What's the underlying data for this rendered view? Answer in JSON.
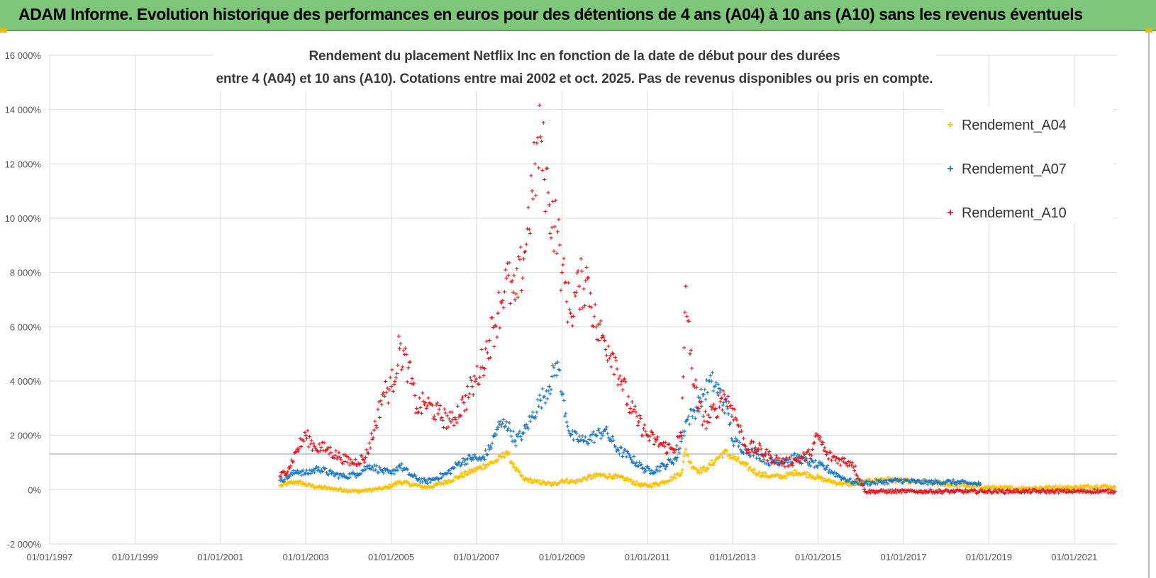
{
  "banner": {
    "title": "ADAM Informe. Evolution historique des performances en euros pour des détentions de 4 ans (A04) à 10 ans (A10) sans les revenus éventuels"
  },
  "colors": {
    "banner": "#7dc67a",
    "A04": "#ffc000",
    "A07": "#1f78c1",
    "A10": "#e8141c",
    "grid": "#d9d9d9"
  },
  "chart_data": {
    "type": "scatter",
    "title_line1": "Rendement du placement Netflix Inc en fonction de la date de début pour des durées",
    "title_line2": "entre 4 (A04) et 10 ans (A10). Cotations entre mai 2002 et oct. 2025. Pas de revenus disponibles ou pris en compte.",
    "xlabel": "",
    "ylabel": "",
    "x_ticks": [
      "01/01/1997",
      "01/01/1999",
      "01/01/2001",
      "01/01/2003",
      "01/01/2005",
      "01/01/2007",
      "01/01/2009",
      "01/01/2011",
      "01/01/2013",
      "01/01/2015",
      "01/01/2017",
      "01/01/2019",
      "01/01/2021"
    ],
    "xlim": [
      1997.0,
      2022.0
    ],
    "y_ticks": [
      "-2 000%",
      "0%",
      "2 000%",
      "4 000%",
      "6 000%",
      "8 000%",
      "10 000%",
      "12 000%",
      "14 000%",
      "16 000%"
    ],
    "ylim": [
      -2000,
      16000
    ],
    "grid": true,
    "legend_position": "right",
    "series": [
      {
        "name": "Rendement_A04",
        "x": [
          2002.4,
          2002.6,
          2002.8,
          2003.0,
          2003.3,
          2003.6,
          2003.9,
          2004.2,
          2004.5,
          2004.8,
          2005.0,
          2005.2,
          2005.5,
          2005.8,
          2006.0,
          2006.3,
          2006.6,
          2006.9,
          2007.2,
          2007.5,
          2007.7,
          2007.9,
          2008.1,
          2008.4,
          2008.6,
          2008.8,
          2009.0,
          2009.3,
          2009.6,
          2009.9,
          2010.2,
          2010.5,
          2010.8,
          2011.0,
          2011.3,
          2011.6,
          2011.8,
          2011.9,
          2012.0,
          2012.2,
          2012.4,
          2012.6,
          2012.8,
          2013.0,
          2013.3,
          2013.6,
          2013.9,
          2014.2,
          2014.5,
          2014.8,
          2015.0,
          2015.2,
          2015.5,
          2015.8,
          2016.1,
          2016.5,
          2016.9,
          2017.3,
          2017.7,
          2018.1,
          2018.5,
          2018.9,
          2019.3,
          2019.7,
          2020.1,
          2020.5,
          2020.9,
          2021.3,
          2021.7,
          2021.95
        ],
        "y": [
          150,
          250,
          300,
          200,
          100,
          50,
          0,
          -50,
          0,
          50,
          150,
          300,
          200,
          100,
          150,
          300,
          500,
          700,
          900,
          1100,
          1400,
          800,
          400,
          300,
          250,
          200,
          350,
          300,
          450,
          550,
          500,
          400,
          200,
          150,
          250,
          450,
          650,
          1500,
          1000,
          700,
          800,
          1100,
          1400,
          1200,
          900,
          600,
          500,
          500,
          650,
          550,
          450,
          350,
          250,
          200,
          300,
          400,
          350,
          300,
          250,
          200,
          150,
          100,
          80,
          60,
          80,
          100,
          90,
          120,
          140,
          100
        ]
      },
      {
        "name": "Rendement_A07",
        "x": [
          2002.4,
          2002.6,
          2002.8,
          2003.0,
          2003.3,
          2003.6,
          2003.9,
          2004.2,
          2004.5,
          2004.8,
          2005.0,
          2005.2,
          2005.5,
          2005.8,
          2006.0,
          2006.3,
          2006.6,
          2006.9,
          2007.1,
          2007.3,
          2007.5,
          2007.7,
          2007.9,
          2008.1,
          2008.3,
          2008.5,
          2008.7,
          2008.9,
          2009.0,
          2009.2,
          2009.5,
          2009.8,
          2010.0,
          2010.3,
          2010.6,
          2010.9,
          2011.1,
          2011.4,
          2011.7,
          2011.9,
          2012.1,
          2012.3,
          2012.5,
          2012.7,
          2012.9,
          2013.0,
          2013.3,
          2013.6,
          2013.9,
          2014.2,
          2014.5,
          2014.8,
          2015.0,
          2015.2,
          2015.5,
          2015.8,
          2016.1,
          2016.5,
          2016.9,
          2017.3,
          2017.7,
          2018.1,
          2018.5,
          2018.8
        ],
        "y": [
          350,
          500,
          700,
          600,
          800,
          600,
          500,
          600,
          900,
          700,
          600,
          900,
          500,
          300,
          400,
          600,
          1000,
          1200,
          1100,
          1500,
          2300,
          2500,
          1800,
          2100,
          2700,
          3300,
          3800,
          4700,
          3500,
          2000,
          1800,
          2000,
          2200,
          1500,
          1200,
          800,
          700,
          900,
          1200,
          2500,
          2900,
          3500,
          4000,
          3600,
          2800,
          1800,
          1500,
          1300,
          1000,
          1100,
          1200,
          1000,
          900,
          800,
          500,
          300,
          250,
          300,
          350,
          300,
          280,
          300,
          250,
          220
        ]
      },
      {
        "name": "Rendement_A10",
        "x": [
          2002.4,
          2002.6,
          2002.8,
          2003.0,
          2003.2,
          2003.5,
          2003.8,
          2004.1,
          2004.4,
          2004.6,
          2004.8,
          2005.0,
          2005.2,
          2005.4,
          2005.6,
          2005.8,
          2006.1,
          2006.4,
          2006.7,
          2006.9,
          2007.1,
          2007.3,
          2007.5,
          2007.7,
          2007.9,
          2008.1,
          2008.3,
          2008.5,
          2008.7,
          2008.9,
          2009.0,
          2009.2,
          2009.4,
          2009.6,
          2009.8,
          2010.0,
          2010.2,
          2010.4,
          2010.6,
          2010.8,
          2011.0,
          2011.2,
          2011.4,
          2011.6,
          2011.8,
          2011.9,
          2012.0,
          2012.2,
          2012.4,
          2012.6,
          2012.8,
          2013.0,
          2013.3,
          2013.6,
          2013.9,
          2014.2,
          2014.5,
          2014.8,
          2015.0,
          2015.2,
          2015.5,
          2015.8,
          2016.1,
          2016.5,
          2016.9,
          2017.3,
          2017.7,
          2018.1,
          2018.5,
          2018.9,
          2019.3,
          2019.7,
          2020.1,
          2020.5,
          2020.9,
          2021.3,
          2021.7,
          2021.95
        ],
        "y": [
          500,
          800,
          1500,
          2000,
          1600,
          1500,
          1200,
          1000,
          1200,
          2200,
          3500,
          3800,
          5200,
          4500,
          3000,
          3200,
          2800,
          2500,
          3200,
          3800,
          4500,
          5500,
          6500,
          7800,
          7000,
          8500,
          11000,
          13000,
          10500,
          9500,
          8000,
          6500,
          7500,
          7800,
          6000,
          5500,
          5000,
          4000,
          3000,
          2500,
          2000,
          1800,
          1600,
          1500,
          2000,
          7500,
          5000,
          3000,
          2500,
          3000,
          3500,
          3000,
          1600,
          1500,
          1200,
          1000,
          1100,
          1300,
          2000,
          1300,
          1100,
          1000,
          -50,
          -50,
          -50,
          -50,
          -50,
          -50,
          -50,
          -50,
          -50,
          -50,
          -50,
          -50,
          -50,
          -50,
          -50,
          -50
        ]
      }
    ]
  }
}
